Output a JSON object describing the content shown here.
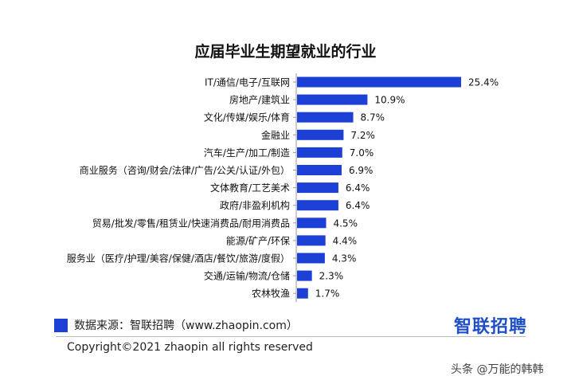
{
  "chart_data": {
    "type": "bar",
    "orientation": "horizontal",
    "title": "应届毕业生期望就业的行业",
    "categories": [
      "IT/通信/电子/互联网",
      "房地产/建筑业",
      "文化/传媒/娱乐/体育",
      "金融业",
      "汽车/生产/加工/制造",
      "商业服务（咨询/财会/法律/广告/公关/认证/外包）",
      "文体教育/工艺美术",
      "政府/非盈利机构",
      "贸易/批发/零售/租赁业/快速消费品/耐用消费品",
      "能源/矿产/环保",
      "服务业（医疗/护理/美容/保健/酒店/餐饮/旅游/度假）",
      "交通/运输/物流/仓储",
      "农林牧渔"
    ],
    "values": [
      25.4,
      10.9,
      8.7,
      7.2,
      7.0,
      6.9,
      6.4,
      6.4,
      4.5,
      4.4,
      4.3,
      2.3,
      1.7
    ],
    "value_labels": [
      "25.4%",
      "10.9%",
      "8.7%",
      "7.2%",
      "7.0%",
      "6.9%",
      "6.4%",
      "6.4%",
      "4.5%",
      "4.4%",
      "4.3%",
      "2.3%",
      "1.7%"
    ],
    "unit": "%",
    "bar_color": "#1c3fd6",
    "grid": false
  },
  "footer": {
    "source": "数据来源：智联招聘（www.zhaopin.com）",
    "brand": "智联招聘",
    "copyright": "Copyright©2021 zhaopin all rights reserved",
    "watermark": "头条 @万能的韩韩"
  }
}
